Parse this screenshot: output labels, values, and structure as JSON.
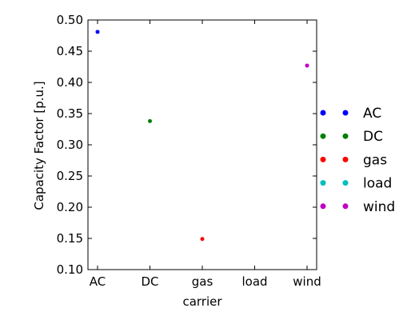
{
  "chart_data": {
    "type": "scatter",
    "title": "",
    "xlabel": "carrier",
    "ylabel": "Capacity Factor [p.u.]",
    "categories": [
      "AC",
      "DC",
      "gas",
      "load",
      "wind"
    ],
    "ylim": [
      0.1,
      0.5
    ],
    "yticks": [
      "0.10",
      "0.15",
      "0.20",
      "0.25",
      "0.30",
      "0.35",
      "0.40",
      "0.45",
      "0.50"
    ],
    "grid": false,
    "legend_position": "right",
    "series": [
      {
        "name": "AC",
        "category": "AC",
        "value": 0.481,
        "color": "#0000ff"
      },
      {
        "name": "DC",
        "category": "DC",
        "value": 0.338,
        "color": "#008000"
      },
      {
        "name": "gas",
        "category": "gas",
        "value": 0.149,
        "color": "#ff0000"
      },
      {
        "name": "load",
        "category": "load",
        "value": null,
        "color": "#00bfbf"
      },
      {
        "name": "wind",
        "category": "wind",
        "value": 0.427,
        "color": "#bf00bf"
      }
    ]
  }
}
